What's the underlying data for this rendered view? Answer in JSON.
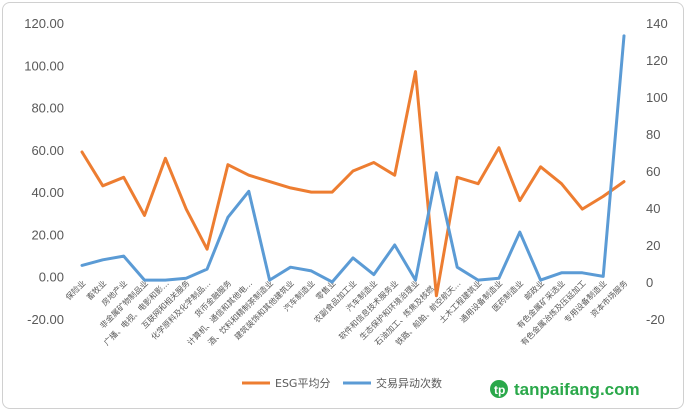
{
  "chart_data": {
    "type": "line",
    "categories": [
      "保险业",
      "畜牧业",
      "房地产业",
      "非金属矿物制品业",
      "广播、电视、电影和影…",
      "互联网和相关服务",
      "化学原料及化学制品…",
      "货币金融服务",
      "计算机、通信和其他电…",
      "酒、饮料和精制茶制造业",
      "建筑装饰和其他建筑业",
      "汽车制造业",
      "零售业",
      "农副食品加工业",
      "汽车制造业",
      "软件和信息技术服务业",
      "生态保护和环境治理业",
      "石油加工、炼焦及核燃…",
      "铁路、船舶、航空航天…",
      "土木工程建筑业",
      "通用设备制造业",
      "医药制造业",
      "邮政业",
      "有色金属矿采选业",
      "有色金属冶炼及压延加工",
      "专用设备制造业",
      "资本市场服务"
    ],
    "series": [
      {
        "name": "ESG平均分",
        "axis": "left",
        "color": "#ed7d31",
        "values": [
          59,
          43,
          47,
          29,
          56,
          32,
          13,
          53,
          48,
          45,
          42,
          40,
          40,
          50,
          54,
          48,
          97,
          -9,
          47,
          44,
          61,
          36,
          52,
          44,
          32,
          38,
          45
        ]
      },
      {
        "name": "交易异动次数",
        "axis": "right",
        "color": "#5b9bd5",
        "values": [
          9,
          12,
          14,
          1,
          1,
          2,
          7,
          35,
          49,
          1,
          8,
          6,
          0,
          13,
          4,
          20,
          1,
          59,
          8,
          1,
          2,
          27,
          1,
          5,
          5,
          3,
          133
        ]
      }
    ],
    "yleft": {
      "ticks": [
        "120.00",
        "100.00",
        "80.00",
        "60.00",
        "40.00",
        "20.00",
        "0.00",
        "-20.00"
      ],
      "lim": [
        -20,
        120
      ]
    },
    "yright": {
      "ticks": [
        "140",
        "120",
        "100",
        "80",
        "60",
        "40",
        "20",
        "0",
        "-20"
      ],
      "lim": [
        -20,
        140
      ]
    },
    "grid": false,
    "legend": "bottom-center"
  },
  "watermark": {
    "text": "tanpaifang.com",
    "color": "#2aa84a"
  }
}
